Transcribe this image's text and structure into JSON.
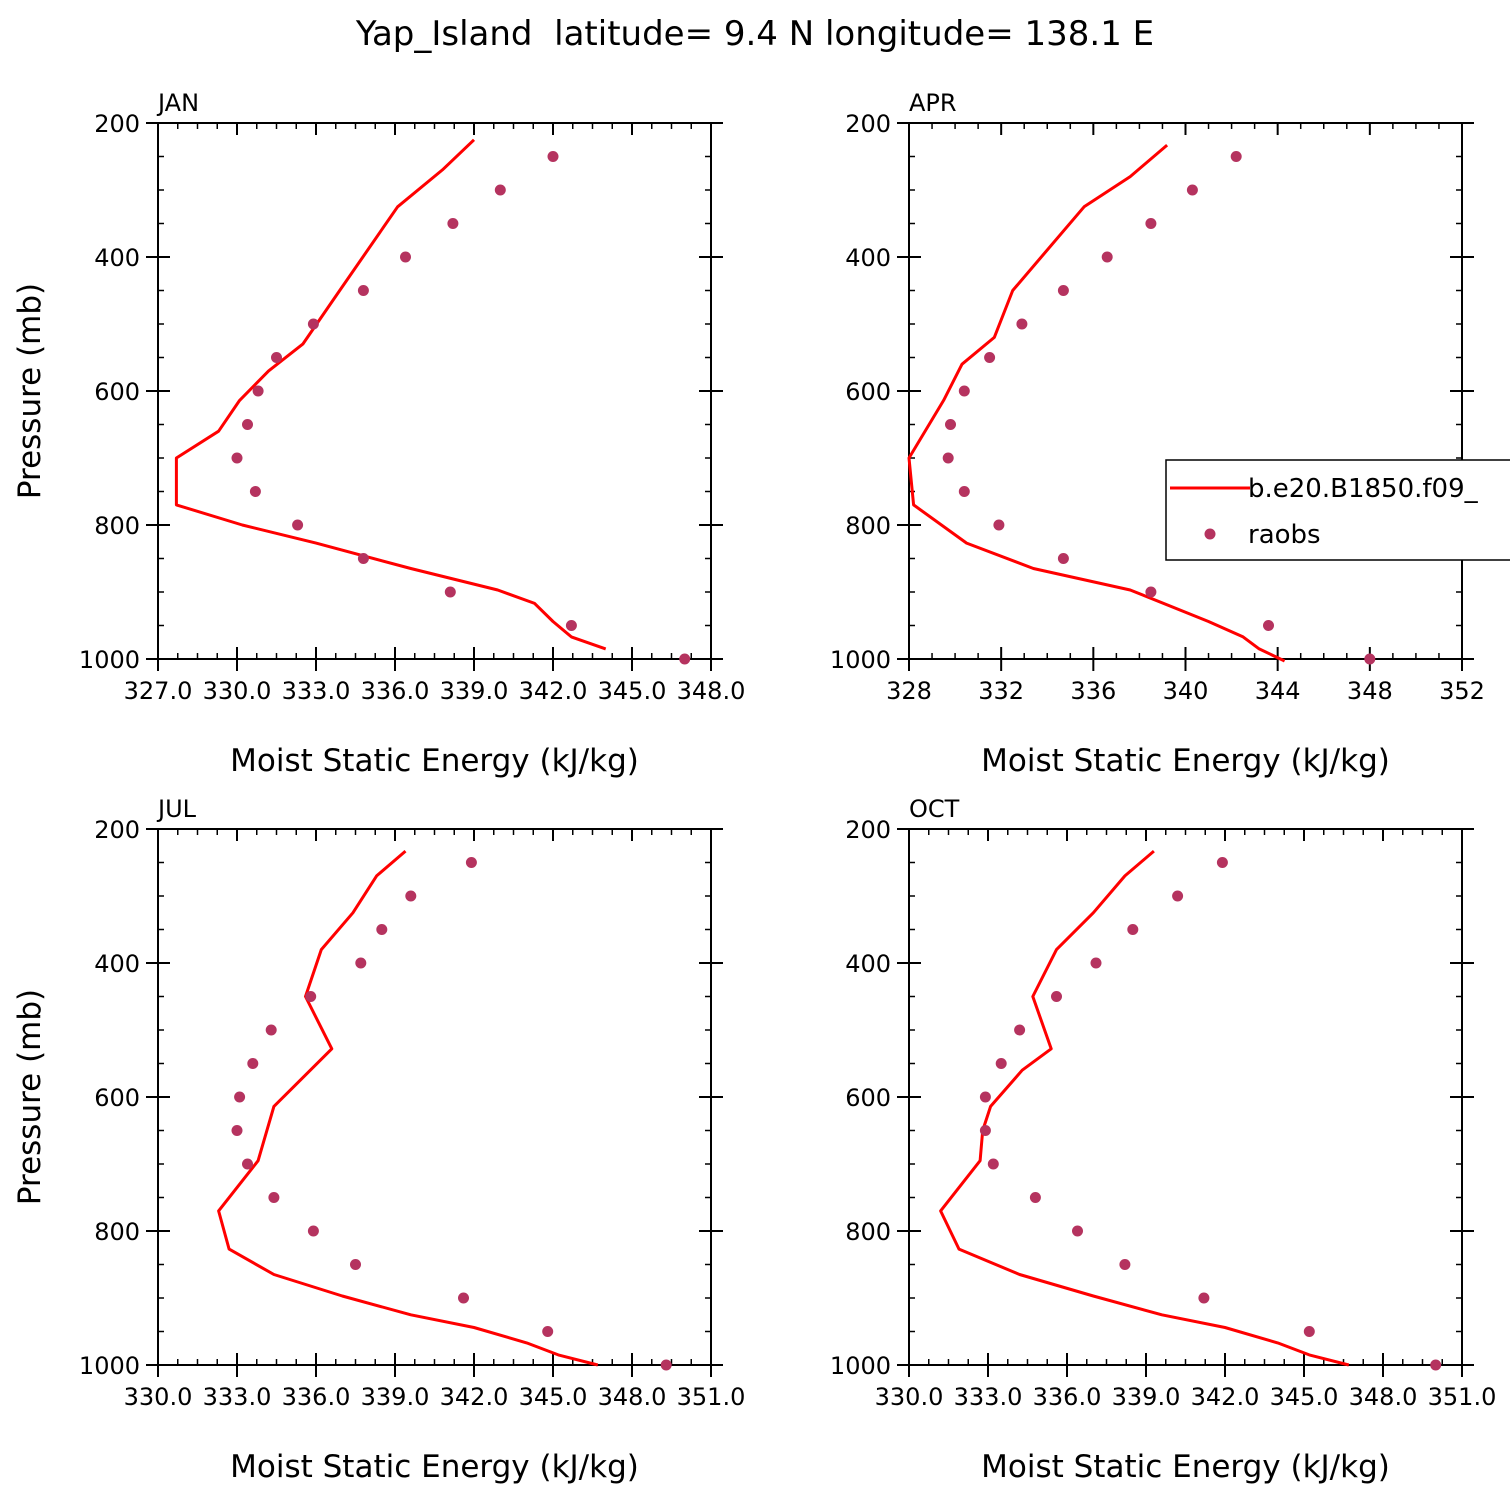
{
  "title": "Yap_Island  latitude= 9.4 N longitude= 138.1 E",
  "legend": {
    "model_label": "b.e20.B1850.f09_",
    "obs_label": "raobs"
  },
  "colors": {
    "model": "#ff0000",
    "obs": "#b5335f"
  },
  "chart_data": [
    {
      "type": "line",
      "panel": "JAN",
      "xlabel": "Moist Static Energy (kJ/kg)",
      "ylabel": "Pressure (mb)",
      "xlim": [
        327.0,
        348.0
      ],
      "ylim": [
        1000,
        200
      ],
      "xticks": [
        "327.0",
        "330.0",
        "333.0",
        "336.0",
        "339.0",
        "342.0",
        "345.0",
        "348.0"
      ],
      "yticks": [
        200,
        400,
        600,
        800,
        1000
      ],
      "series": [
        {
          "name": "b.e20.B1850.f09_",
          "style": "line",
          "x": [
            339.0,
            337.8,
            336.1,
            333.9,
            332.5,
            331.2,
            330.1,
            329.3,
            327.7,
            327.7,
            330.2,
            333.0,
            336.6,
            339.9,
            341.3,
            342.0,
            342.7,
            344.0
          ],
          "y": [
            225,
            270,
            325,
            450,
            530,
            570,
            614,
            660,
            700,
            770,
            800,
            827,
            865,
            897,
            917,
            944,
            967,
            985
          ]
        },
        {
          "name": "raobs",
          "style": "points",
          "x": [
            342.0,
            340.0,
            338.2,
            336.4,
            334.8,
            332.9,
            331.5,
            330.8,
            330.4,
            330.0,
            330.7,
            332.3,
            334.8,
            338.1,
            342.7,
            347.0
          ],
          "y": [
            250,
            300,
            350,
            400,
            450,
            500,
            550,
            600,
            650,
            700,
            750,
            800,
            850,
            900,
            950,
            1000
          ]
        }
      ]
    },
    {
      "type": "line",
      "panel": "APR",
      "xlabel": "Moist Static Energy (kJ/kg)",
      "ylabel": "",
      "xlim": [
        328,
        352
      ],
      "ylim": [
        1000,
        200
      ],
      "xticks": [
        "328",
        "332",
        "336",
        "340",
        "344",
        "348",
        "352"
      ],
      "yticks": [
        200,
        400,
        600,
        800,
        1000
      ],
      "series": [
        {
          "name": "b.e20.B1850.f09_",
          "style": "line",
          "x": [
            339.2,
            337.6,
            335.6,
            332.5,
            331.7,
            330.3,
            329.5,
            328.0,
            328.2,
            330.5,
            333.4,
            337.6,
            341.0,
            342.5,
            343.2,
            344.3
          ],
          "y": [
            233,
            280,
            325,
            450,
            520,
            560,
            614,
            700,
            770,
            827,
            865,
            897,
            944,
            967,
            985,
            1003
          ]
        },
        {
          "name": "raobs",
          "style": "points",
          "x": [
            342.2,
            340.3,
            338.5,
            336.6,
            334.7,
            332.9,
            331.5,
            330.4,
            329.8,
            329.7,
            330.4,
            331.9,
            334.7,
            338.5,
            343.6,
            348.0
          ],
          "y": [
            250,
            300,
            350,
            400,
            450,
            500,
            550,
            600,
            650,
            700,
            750,
            800,
            850,
            900,
            950,
            1000
          ]
        }
      ]
    },
    {
      "type": "line",
      "panel": "JUL",
      "xlabel": "Moist Static Energy (kJ/kg)",
      "ylabel": "Pressure (mb)",
      "xlim": [
        330.0,
        351.0
      ],
      "ylim": [
        1000,
        200
      ],
      "xticks": [
        "330.0",
        "333.0",
        "336.0",
        "339.0",
        "342.0",
        "345.0",
        "348.0",
        "351.0"
      ],
      "yticks": [
        200,
        400,
        600,
        800,
        1000
      ],
      "series": [
        {
          "name": "b.e20.B1850.f09_",
          "style": "line",
          "x": [
            339.4,
            338.3,
            337.4,
            336.2,
            335.6,
            336.6,
            334.4,
            333.8,
            332.3,
            332.7,
            334.4,
            337.0,
            339.6,
            342.0,
            344.0,
            345.2,
            346.7
          ],
          "y": [
            233,
            270,
            325,
            380,
            450,
            528,
            614,
            695,
            770,
            827,
            865,
            897,
            925,
            944,
            967,
            985,
            1000
          ]
        },
        {
          "name": "raobs",
          "style": "points",
          "x": [
            341.9,
            339.6,
            338.5,
            337.7,
            335.8,
            334.3,
            333.6,
            333.1,
            333.0,
            333.4,
            334.4,
            335.9,
            337.5,
            341.6,
            344.8,
            349.3
          ],
          "y": [
            250,
            300,
            350,
            400,
            450,
            500,
            550,
            600,
            650,
            700,
            750,
            800,
            850,
            900,
            950,
            1000
          ]
        }
      ]
    },
    {
      "type": "line",
      "panel": "OCT",
      "xlabel": "Moist Static Energy (kJ/kg)",
      "ylabel": "",
      "xlim": [
        330.0,
        351.0
      ],
      "ylim": [
        1000,
        200
      ],
      "xticks": [
        "330.0",
        "333.0",
        "336.0",
        "339.0",
        "342.0",
        "345.0",
        "348.0",
        "351.0"
      ],
      "yticks": [
        200,
        400,
        600,
        800,
        1000
      ],
      "series": [
        {
          "name": "b.e20.B1850.f09_",
          "style": "line",
          "x": [
            339.3,
            338.2,
            337.0,
            335.6,
            334.7,
            335.4,
            334.3,
            333.1,
            332.8,
            332.7,
            331.2,
            331.9,
            334.2,
            337.0,
            339.6,
            342.0,
            344.0,
            345.2,
            346.7
          ],
          "y": [
            233,
            270,
            325,
            380,
            450,
            528,
            560,
            614,
            650,
            695,
            770,
            827,
            865,
            897,
            925,
            944,
            967,
            985,
            1000
          ]
        },
        {
          "name": "raobs",
          "style": "points",
          "x": [
            341.9,
            340.2,
            338.5,
            337.1,
            335.6,
            334.2,
            333.5,
            332.9,
            332.9,
            333.2,
            334.8,
            336.4,
            338.2,
            341.2,
            345.2,
            350.0
          ],
          "y": [
            250,
            300,
            350,
            400,
            450,
            500,
            550,
            600,
            650,
            700,
            750,
            800,
            850,
            900,
            950,
            1000
          ]
        }
      ]
    }
  ]
}
